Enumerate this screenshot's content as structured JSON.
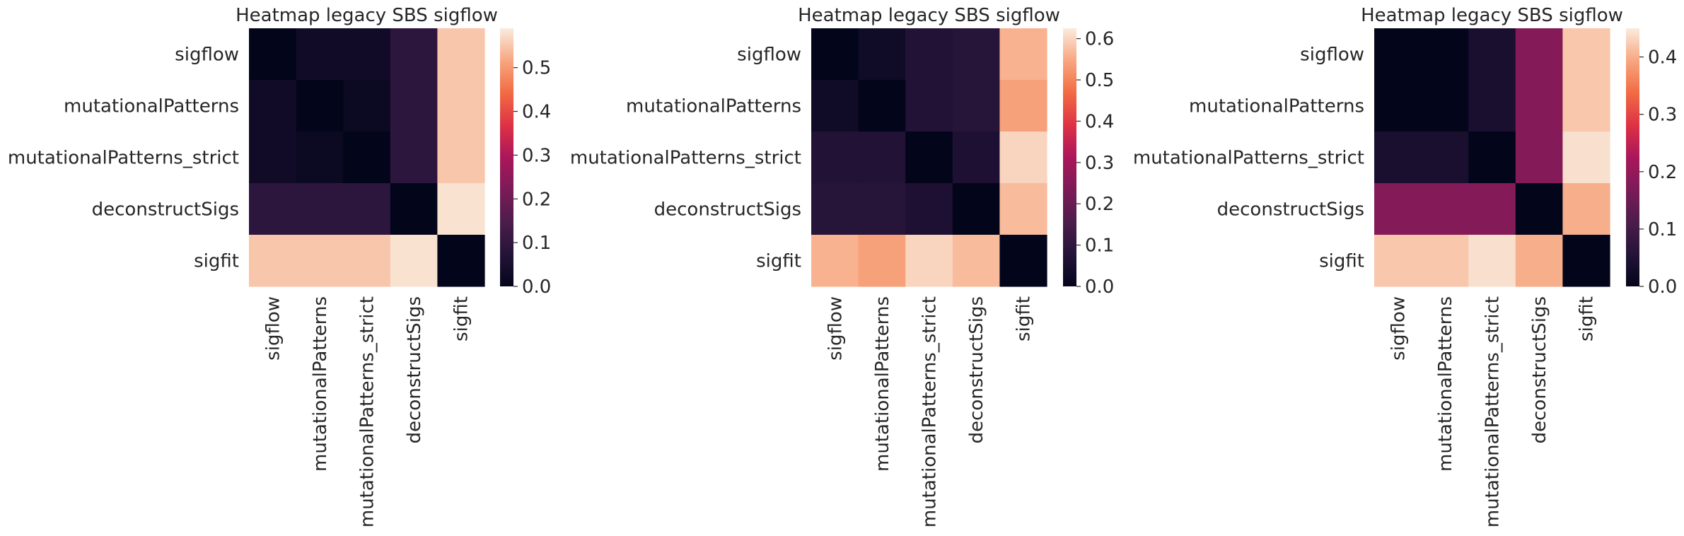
{
  "chart_data": [
    {
      "type": "heatmap",
      "title": "Heatmap legacy SBS sigflow",
      "rows": [
        "sigflow",
        "mutationalPatterns",
        "mutationalPatterns_strict",
        "deconstructSigs",
        "sigfit"
      ],
      "columns": [
        "sigflow",
        "mutationalPatterns",
        "mutationalPatterns_strict",
        "deconstructSigs",
        "sigfit"
      ],
      "values": [
        [
          0.0,
          0.03,
          0.03,
          0.09,
          0.55
        ],
        [
          0.03,
          0.0,
          0.02,
          0.09,
          0.55
        ],
        [
          0.03,
          0.02,
          0.0,
          0.09,
          0.55
        ],
        [
          0.09,
          0.09,
          0.09,
          0.0,
          0.58
        ],
        [
          0.55,
          0.55,
          0.55,
          0.58,
          0.0
        ]
      ],
      "colorbar": {
        "min": 0,
        "max": 0.59,
        "ticks": [
          0.0,
          0.1,
          0.2,
          0.3,
          0.4,
          0.5
        ],
        "tick_labels": [
          "0.0",
          "0.1",
          "0.2",
          "0.3",
          "0.4",
          "0.5"
        ]
      }
    },
    {
      "type": "heatmap",
      "title": "Heatmap legacy SBS sigflow",
      "rows": [
        "sigflow",
        "mutationalPatterns",
        "mutationalPatterns_strict",
        "deconstructSigs",
        "sigfit"
      ],
      "columns": [
        "sigflow",
        "mutationalPatterns",
        "mutationalPatterns_strict",
        "deconstructSigs",
        "sigfit"
      ],
      "values": [
        [
          0.0,
          0.03,
          0.07,
          0.08,
          0.56
        ],
        [
          0.03,
          0.0,
          0.07,
          0.08,
          0.54
        ],
        [
          0.07,
          0.07,
          0.0,
          0.06,
          0.6
        ],
        [
          0.08,
          0.08,
          0.06,
          0.0,
          0.57
        ],
        [
          0.56,
          0.54,
          0.6,
          0.57,
          0.0
        ]
      ],
      "colorbar": {
        "min": 0,
        "max": 0.625,
        "ticks": [
          0.0,
          0.1,
          0.2,
          0.3,
          0.4,
          0.5,
          0.6
        ],
        "tick_labels": [
          "0.0",
          "0.1",
          "0.2",
          "0.3",
          "0.4",
          "0.5",
          "0.6"
        ]
      }
    },
    {
      "type": "heatmap",
      "title": "Heatmap legacy SBS sigflow",
      "rows": [
        "sigflow",
        "mutationalPatterns",
        "mutationalPatterns_strict",
        "deconstructSigs",
        "sigfit"
      ],
      "columns": [
        "sigflow",
        "mutationalPatterns",
        "mutationalPatterns_strict",
        "deconstructSigs",
        "sigfit"
      ],
      "values": [
        [
          0.0,
          0.0,
          0.04,
          0.18,
          0.42
        ],
        [
          0.0,
          0.0,
          0.04,
          0.18,
          0.42
        ],
        [
          0.04,
          0.04,
          0.0,
          0.18,
          0.44
        ],
        [
          0.18,
          0.18,
          0.18,
          0.0,
          0.4
        ],
        [
          0.42,
          0.42,
          0.44,
          0.4,
          0.0
        ]
      ],
      "colorbar": {
        "min": 0,
        "max": 0.45,
        "ticks": [
          0.0,
          0.1,
          0.2,
          0.3,
          0.4
        ],
        "tick_labels": [
          "0.0",
          "0.1",
          "0.2",
          "0.3",
          "0.4"
        ]
      }
    }
  ]
}
